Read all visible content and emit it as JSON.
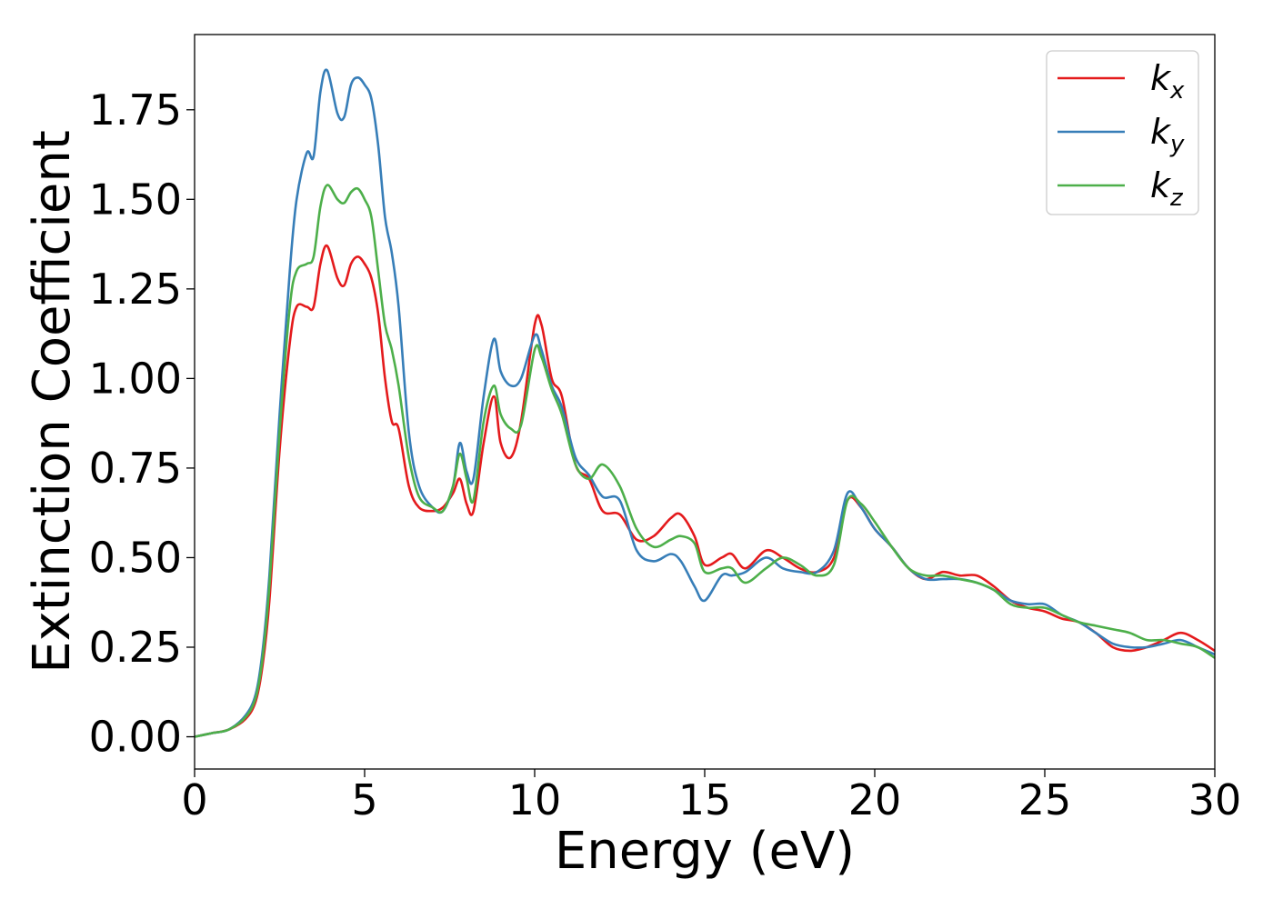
{
  "chart_data": {
    "type": "line",
    "title": "",
    "xlabel": "Energy (eV)",
    "ylabel": "Extinction Coefficient",
    "xlim": [
      0,
      30
    ],
    "ylim": [
      -0.09,
      1.96
    ],
    "xticks": [
      0,
      5,
      10,
      15,
      20,
      25,
      30
    ],
    "xtick_labels": [
      "0",
      "5",
      "10",
      "15",
      "20",
      "25",
      "30"
    ],
    "yticks": [
      0.0,
      0.25,
      0.5,
      0.75,
      1.0,
      1.25,
      1.5,
      1.75
    ],
    "ytick_labels": [
      "0.00",
      "0.25",
      "0.50",
      "0.75",
      "1.00",
      "1.25",
      "1.50",
      "1.75"
    ],
    "grid": false,
    "legend_position": "top-right",
    "series": [
      {
        "name": "k_x",
        "legend_main": "k",
        "legend_sub": "x",
        "color": "#e41a1c",
        "x": [
          0,
          0.5,
          1.0,
          1.5,
          1.8,
          2.0,
          2.2,
          2.5,
          2.8,
          3.0,
          3.3,
          3.5,
          3.7,
          3.9,
          4.2,
          4.4,
          4.6,
          4.8,
          5.0,
          5.2,
          5.4,
          5.6,
          5.8,
          6.0,
          6.3,
          6.6,
          7.0,
          7.3,
          7.6,
          7.8,
          8.0,
          8.2,
          8.5,
          8.8,
          9.0,
          9.3,
          9.6,
          10.0,
          10.2,
          10.5,
          10.8,
          11.2,
          11.6,
          12.0,
          12.5,
          13.0,
          13.5,
          14.0,
          14.3,
          14.7,
          15.0,
          15.5,
          15.8,
          16.2,
          16.8,
          17.3,
          17.8,
          18.3,
          18.8,
          19.2,
          19.6,
          20.0,
          20.5,
          21.0,
          21.5,
          22.0,
          22.5,
          23.0,
          23.5,
          24.0,
          24.5,
          25.0,
          25.5,
          26.0,
          26.5,
          27.0,
          27.5,
          28.0,
          28.5,
          29.0,
          29.5,
          30.0
        ],
        "y": [
          0.0,
          0.01,
          0.02,
          0.05,
          0.1,
          0.2,
          0.38,
          0.8,
          1.1,
          1.2,
          1.2,
          1.2,
          1.32,
          1.37,
          1.28,
          1.26,
          1.32,
          1.34,
          1.32,
          1.28,
          1.18,
          1.0,
          0.88,
          0.86,
          0.7,
          0.64,
          0.63,
          0.64,
          0.68,
          0.72,
          0.65,
          0.63,
          0.82,
          0.95,
          0.82,
          0.78,
          0.88,
          1.15,
          1.15,
          1.0,
          0.95,
          0.76,
          0.72,
          0.63,
          0.62,
          0.55,
          0.56,
          0.61,
          0.62,
          0.56,
          0.48,
          0.5,
          0.51,
          0.47,
          0.52,
          0.5,
          0.47,
          0.46,
          0.5,
          0.66,
          0.64,
          0.58,
          0.53,
          0.47,
          0.44,
          0.46,
          0.45,
          0.45,
          0.42,
          0.38,
          0.36,
          0.35,
          0.33,
          0.32,
          0.29,
          0.25,
          0.24,
          0.25,
          0.27,
          0.29,
          0.27,
          0.24
        ]
      },
      {
        "name": "k_y",
        "legend_main": "k",
        "legend_sub": "y",
        "color": "#377eb8",
        "x": [
          0,
          0.5,
          1.0,
          1.5,
          1.8,
          2.0,
          2.2,
          2.5,
          2.8,
          3.0,
          3.3,
          3.5,
          3.7,
          3.9,
          4.2,
          4.4,
          4.6,
          4.8,
          5.0,
          5.2,
          5.4,
          5.6,
          5.8,
          6.0,
          6.3,
          6.6,
          7.0,
          7.3,
          7.6,
          7.8,
          8.0,
          8.2,
          8.5,
          8.8,
          9.0,
          9.3,
          9.6,
          10.0,
          10.2,
          10.5,
          10.8,
          11.2,
          11.6,
          12.0,
          12.5,
          13.0,
          13.5,
          14.0,
          14.3,
          14.7,
          15.0,
          15.5,
          15.8,
          16.2,
          16.8,
          17.3,
          17.8,
          18.3,
          18.8,
          19.2,
          19.6,
          20.0,
          20.5,
          21.0,
          21.5,
          22.0,
          22.5,
          23.0,
          23.5,
          24.0,
          24.5,
          25.0,
          25.5,
          26.0,
          26.5,
          27.0,
          27.5,
          28.0,
          28.5,
          29.0,
          29.5,
          30.0
        ],
        "y": [
          0.0,
          0.01,
          0.02,
          0.06,
          0.12,
          0.24,
          0.45,
          0.9,
          1.3,
          1.5,
          1.63,
          1.62,
          1.8,
          1.86,
          1.74,
          1.73,
          1.82,
          1.84,
          1.82,
          1.78,
          1.65,
          1.45,
          1.35,
          1.2,
          0.85,
          0.7,
          0.64,
          0.63,
          0.7,
          0.82,
          0.74,
          0.72,
          0.95,
          1.11,
          1.02,
          0.98,
          1.0,
          1.12,
          1.08,
          0.98,
          0.92,
          0.78,
          0.73,
          0.67,
          0.66,
          0.52,
          0.49,
          0.51,
          0.49,
          0.42,
          0.38,
          0.45,
          0.45,
          0.46,
          0.5,
          0.47,
          0.46,
          0.46,
          0.52,
          0.68,
          0.64,
          0.58,
          0.53,
          0.47,
          0.44,
          0.44,
          0.44,
          0.43,
          0.41,
          0.38,
          0.37,
          0.37,
          0.34,
          0.32,
          0.29,
          0.26,
          0.25,
          0.25,
          0.26,
          0.27,
          0.25,
          0.23
        ]
      },
      {
        "name": "k_z",
        "legend_main": "k",
        "legend_sub": "z",
        "color": "#4daf4a",
        "x": [
          0,
          0.5,
          1.0,
          1.5,
          1.8,
          2.0,
          2.2,
          2.5,
          2.8,
          3.0,
          3.3,
          3.5,
          3.7,
          3.9,
          4.2,
          4.4,
          4.6,
          4.8,
          5.0,
          5.2,
          5.4,
          5.6,
          5.8,
          6.0,
          6.3,
          6.6,
          7.0,
          7.3,
          7.6,
          7.8,
          8.0,
          8.2,
          8.5,
          8.8,
          9.0,
          9.3,
          9.6,
          10.0,
          10.2,
          10.5,
          10.8,
          11.2,
          11.6,
          12.0,
          12.5,
          13.0,
          13.5,
          14.0,
          14.3,
          14.7,
          15.0,
          15.5,
          15.8,
          16.2,
          16.8,
          17.3,
          17.8,
          18.3,
          18.8,
          19.2,
          19.6,
          20.0,
          20.5,
          21.0,
          21.5,
          22.0,
          22.5,
          23.0,
          23.5,
          24.0,
          24.5,
          25.0,
          25.5,
          26.0,
          26.5,
          27.0,
          27.5,
          28.0,
          28.5,
          29.0,
          29.5,
          30.0
        ],
        "y": [
          0.0,
          0.01,
          0.02,
          0.055,
          0.11,
          0.22,
          0.42,
          0.85,
          1.2,
          1.3,
          1.32,
          1.34,
          1.48,
          1.54,
          1.5,
          1.49,
          1.52,
          1.53,
          1.5,
          1.45,
          1.3,
          1.15,
          1.08,
          0.98,
          0.78,
          0.67,
          0.64,
          0.63,
          0.7,
          0.79,
          0.72,
          0.66,
          0.88,
          0.98,
          0.9,
          0.86,
          0.87,
          1.08,
          1.06,
          0.97,
          0.9,
          0.76,
          0.72,
          0.76,
          0.7,
          0.58,
          0.53,
          0.55,
          0.56,
          0.54,
          0.46,
          0.47,
          0.47,
          0.43,
          0.47,
          0.5,
          0.48,
          0.45,
          0.48,
          0.66,
          0.65,
          0.6,
          0.53,
          0.47,
          0.45,
          0.45,
          0.44,
          0.43,
          0.41,
          0.37,
          0.36,
          0.36,
          0.34,
          0.32,
          0.31,
          0.3,
          0.29,
          0.27,
          0.27,
          0.26,
          0.25,
          0.22
        ]
      }
    ]
  }
}
